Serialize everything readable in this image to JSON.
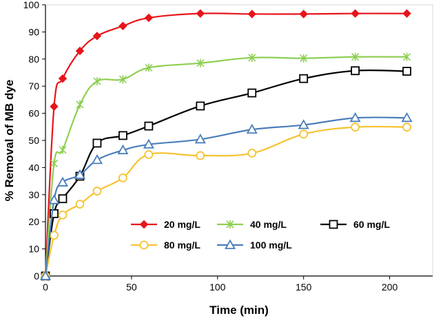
{
  "chart_data": {
    "type": "line",
    "title": "",
    "xlabel": "Time (min)",
    "ylabel": "% Removal of MB dye",
    "xlim": [
      0,
      225
    ],
    "ylim": [
      0,
      100
    ],
    "xticks": [
      0,
      50,
      100,
      150,
      200
    ],
    "yticks": [
      0,
      10,
      20,
      30,
      40,
      50,
      60,
      70,
      80,
      90,
      100
    ],
    "grid": false,
    "legend_position": "lower-middle",
    "x": [
      0,
      5,
      10,
      20,
      30,
      45,
      60,
      90,
      120,
      150,
      180,
      210
    ],
    "series": [
      {
        "name": "20 mg/L",
        "color": "#e8141b",
        "marker": "diamond",
        "values": [
          0,
          62.5,
          72.8,
          83.0,
          88.5,
          92.2,
          95.2,
          96.8,
          96.6,
          96.6,
          96.8,
          96.8
        ]
      },
      {
        "name": "40 mg/L",
        "color": "#8ecf53",
        "marker": "star",
        "values": [
          0,
          41.5,
          46.5,
          63.2,
          71.8,
          72.5,
          76.8,
          78.5,
          80.5,
          80.3,
          80.8,
          80.8
        ]
      },
      {
        "name": "60 mg/L",
        "color": "#000000",
        "marker": "square",
        "values": [
          0,
          23.0,
          28.5,
          36.8,
          49.0,
          51.8,
          55.3,
          62.7,
          67.5,
          72.8,
          75.7,
          75.5
        ]
      },
      {
        "name": "80 mg/L",
        "color": "#f6c231",
        "marker": "circle",
        "values": [
          0,
          15.0,
          22.5,
          26.5,
          31.3,
          36.2,
          44.8,
          44.4,
          45.3,
          52.3,
          54.9,
          54.9
        ]
      },
      {
        "name": "100 mg/L",
        "color": "#4a7ebb",
        "marker": "triangle",
        "values": [
          0,
          28.0,
          34.5,
          37.3,
          42.8,
          46.4,
          48.5,
          50.4,
          54.0,
          55.7,
          58.3,
          58.3
        ]
      }
    ]
  }
}
